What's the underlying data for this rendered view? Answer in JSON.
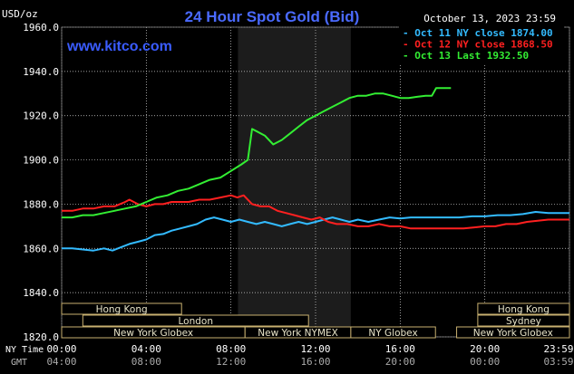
{
  "header": {
    "title": "24 Hour Spot Gold (Bid)",
    "y_unit": "USD/oz",
    "date_label": "October 13, 2023 23:59",
    "website": "www.kitco.com"
  },
  "colors": {
    "background": "#000000",
    "plot_bg": "#000000",
    "shaded_band": "#1c1c1c",
    "grid": "#d8d8d8",
    "text": "#ffffff",
    "title": "#4a6aff",
    "website": "#3a5cff",
    "session_bg": "#000000",
    "session_border": "#c8b070",
    "session_text": "#e8e4c8"
  },
  "sessions": [
    {
      "label": "Hong Kong",
      "start": "00:00",
      "end": "05:40",
      "row": 0
    },
    {
      "label": "Hong Kong",
      "start": "19:40",
      "end": "24:00",
      "row": 0
    },
    {
      "label": "London",
      "start": "01:00",
      "end": "11:40",
      "row": 1
    },
    {
      "label": "Sydney",
      "start": "19:40",
      "end": "24:00",
      "row": 1
    },
    {
      "label": "New York Globex",
      "start": "00:00",
      "end": "08:40",
      "row": 2
    },
    {
      "label": "New York NYMEX",
      "start": "08:40",
      "end": "13:40",
      "row": 2
    },
    {
      "label": "NY Globex",
      "start": "13:40",
      "end": "17:40",
      "row": 2
    },
    {
      "label": "New York Globex",
      "start": "18:40",
      "end": "24:00",
      "row": 2
    }
  ],
  "axis_labels": {
    "ny_time": "NY Time",
    "gmt": "GMT"
  },
  "chart_data": {
    "type": "line",
    "title": "24 Hour Spot Gold (Bid)",
    "ylabel": "USD/oz",
    "xlabel": "",
    "ylim": [
      1820,
      1960
    ],
    "xlim": [
      0,
      24
    ],
    "yticks": [
      1820,
      1840,
      1860,
      1880,
      1900,
      1920,
      1940,
      1960
    ],
    "ytick_labels": [
      "1820.0",
      "1840.0",
      "1860.0",
      "1880.0",
      "1900.0",
      "1920.0",
      "1940.0",
      "1960.0"
    ],
    "xtick_labels_ny": [
      "00:00",
      "04:00",
      "08:00",
      "12:00",
      "16:00",
      "20:00",
      "23:59"
    ],
    "xtick_labels_gmt": [
      "04:00",
      "08:00",
      "12:00",
      "16:00",
      "20:00",
      "00:00",
      "03:59"
    ],
    "grid": true,
    "shaded_range": [
      "08:20",
      "13:40"
    ],
    "legend_position": "top-right",
    "series": [
      {
        "name": "Oct 11 NY close 1874.00",
        "color": "#33bbff",
        "points": [
          [
            0.0,
            1860
          ],
          [
            0.5,
            1860
          ],
          [
            1.0,
            1859.5
          ],
          [
            1.5,
            1859
          ],
          [
            2.0,
            1860
          ],
          [
            2.4,
            1859
          ],
          [
            2.8,
            1860.5
          ],
          [
            3.2,
            1862
          ],
          [
            3.6,
            1863
          ],
          [
            4.0,
            1864
          ],
          [
            4.4,
            1866
          ],
          [
            4.8,
            1866.5
          ],
          [
            5.2,
            1868
          ],
          [
            5.6,
            1869
          ],
          [
            6.0,
            1870
          ],
          [
            6.4,
            1871
          ],
          [
            6.8,
            1873
          ],
          [
            7.2,
            1874
          ],
          [
            7.6,
            1873
          ],
          [
            8.0,
            1872
          ],
          [
            8.4,
            1873
          ],
          [
            8.8,
            1872
          ],
          [
            9.2,
            1871
          ],
          [
            9.6,
            1872
          ],
          [
            10.0,
            1871
          ],
          [
            10.4,
            1870
          ],
          [
            10.8,
            1871
          ],
          [
            11.2,
            1872
          ],
          [
            11.6,
            1871
          ],
          [
            12.0,
            1872
          ],
          [
            12.4,
            1873
          ],
          [
            12.8,
            1874
          ],
          [
            13.2,
            1873
          ],
          [
            13.6,
            1872
          ],
          [
            14.0,
            1873
          ],
          [
            14.5,
            1872
          ],
          [
            15.0,
            1873
          ],
          [
            15.5,
            1874
          ],
          [
            16.0,
            1873.5
          ],
          [
            16.5,
            1874
          ],
          [
            17.0,
            1874
          ],
          [
            17.6,
            1874
          ],
          [
            18.2,
            1874
          ],
          [
            18.8,
            1874
          ],
          [
            19.4,
            1874.5
          ],
          [
            20.0,
            1874.5
          ],
          [
            20.6,
            1875
          ],
          [
            21.2,
            1875
          ],
          [
            21.8,
            1875.5
          ],
          [
            22.4,
            1876.5
          ],
          [
            23.0,
            1876
          ],
          [
            23.6,
            1876
          ],
          [
            24.0,
            1876
          ]
        ]
      },
      {
        "name": "Oct 12 NY close 1868.50",
        "color": "#ff2020",
        "points": [
          [
            0.0,
            1877
          ],
          [
            0.5,
            1877
          ],
          [
            1.0,
            1878
          ],
          [
            1.5,
            1878
          ],
          [
            2.0,
            1879
          ],
          [
            2.5,
            1879
          ],
          [
            3.0,
            1881
          ],
          [
            3.2,
            1882
          ],
          [
            3.6,
            1880
          ],
          [
            4.0,
            1879
          ],
          [
            4.4,
            1880
          ],
          [
            4.8,
            1880
          ],
          [
            5.2,
            1881
          ],
          [
            5.6,
            1881
          ],
          [
            6.0,
            1881
          ],
          [
            6.5,
            1882
          ],
          [
            7.0,
            1882
          ],
          [
            7.5,
            1883
          ],
          [
            8.0,
            1884
          ],
          [
            8.3,
            1883
          ],
          [
            8.6,
            1884
          ],
          [
            9.0,
            1880
          ],
          [
            9.4,
            1879
          ],
          [
            9.8,
            1879
          ],
          [
            10.2,
            1877
          ],
          [
            10.6,
            1876
          ],
          [
            11.0,
            1875
          ],
          [
            11.4,
            1874
          ],
          [
            11.8,
            1873
          ],
          [
            12.2,
            1874
          ],
          [
            12.6,
            1872
          ],
          [
            13.0,
            1871
          ],
          [
            13.5,
            1871
          ],
          [
            14.0,
            1870
          ],
          [
            14.5,
            1870
          ],
          [
            15.0,
            1871
          ],
          [
            15.5,
            1870
          ],
          [
            16.0,
            1870
          ],
          [
            16.5,
            1869
          ],
          [
            17.0,
            1869
          ],
          [
            17.5,
            1869
          ],
          [
            18.0,
            1869
          ],
          [
            18.5,
            1869
          ],
          [
            19.0,
            1869
          ],
          [
            19.5,
            1869.5
          ],
          [
            20.0,
            1870
          ],
          [
            20.5,
            1870
          ],
          [
            21.0,
            1871
          ],
          [
            21.5,
            1871
          ],
          [
            22.0,
            1872
          ],
          [
            22.5,
            1872.5
          ],
          [
            23.0,
            1873
          ],
          [
            23.5,
            1873
          ],
          [
            24.0,
            1873
          ]
        ]
      },
      {
        "name": "Oct 13 Last 1932.50",
        "color": "#33ee33",
        "points": [
          [
            0.0,
            1874
          ],
          [
            0.5,
            1874
          ],
          [
            1.0,
            1875
          ],
          [
            1.5,
            1875
          ],
          [
            2.0,
            1876
          ],
          [
            2.5,
            1877
          ],
          [
            3.0,
            1878
          ],
          [
            3.5,
            1879
          ],
          [
            4.0,
            1881
          ],
          [
            4.5,
            1883
          ],
          [
            5.0,
            1884
          ],
          [
            5.5,
            1886
          ],
          [
            6.0,
            1887
          ],
          [
            6.5,
            1889
          ],
          [
            7.0,
            1891
          ],
          [
            7.5,
            1892
          ],
          [
            8.0,
            1895
          ],
          [
            8.5,
            1898
          ],
          [
            8.8,
            1900
          ],
          [
            9.0,
            1914
          ],
          [
            9.2,
            1913
          ],
          [
            9.6,
            1911
          ],
          [
            10.0,
            1907
          ],
          [
            10.4,
            1909
          ],
          [
            10.8,
            1912
          ],
          [
            11.2,
            1915
          ],
          [
            11.6,
            1918
          ],
          [
            12.0,
            1920
          ],
          [
            12.4,
            1922
          ],
          [
            12.8,
            1924
          ],
          [
            13.2,
            1926
          ],
          [
            13.6,
            1928
          ],
          [
            14.0,
            1929
          ],
          [
            14.4,
            1929
          ],
          [
            14.8,
            1930
          ],
          [
            15.2,
            1930
          ],
          [
            15.6,
            1929
          ],
          [
            16.0,
            1928
          ],
          [
            16.4,
            1928
          ],
          [
            16.8,
            1928.5
          ],
          [
            17.2,
            1929
          ],
          [
            17.5,
            1929
          ],
          [
            17.7,
            1932.5
          ],
          [
            18.0,
            1932.5
          ],
          [
            18.4,
            1932.5
          ]
        ]
      }
    ]
  }
}
